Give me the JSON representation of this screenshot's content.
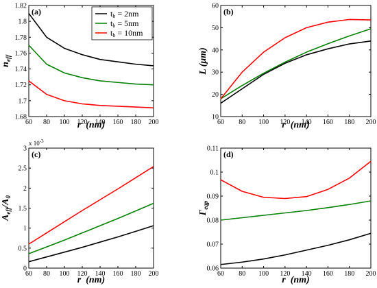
{
  "colors": {
    "black": "#000000",
    "green": "#008000",
    "red": "#ff0000"
  },
  "legend": {
    "panel": "a",
    "entries": [
      {
        "prefix": "t",
        "sub": "b",
        "value": " = 2nm",
        "color": "black"
      },
      {
        "prefix": "t",
        "sub": "b",
        "value": " = 5nm",
        "color": "green"
      },
      {
        "prefix": "t",
        "sub": "b",
        "value": " = 10nm",
        "color": "red"
      }
    ]
  },
  "chart_data": [
    {
      "id": "a",
      "type": "line",
      "panel_label": "(a)",
      "xlabel": "r  (nm)",
      "ylabel_main": "n",
      "ylabel_sub": "eff",
      "xlim": [
        60,
        200
      ],
      "ylim": [
        1.68,
        1.82
      ],
      "xticks": [
        60,
        80,
        100,
        120,
        140,
        160,
        180,
        200
      ],
      "yticks": [
        1.68,
        1.7,
        1.72,
        1.74,
        1.76,
        1.78,
        1.8,
        1.82
      ],
      "ytick_labels": [
        "1.68",
        "1.7",
        "1.72",
        "1.74",
        "1.76",
        "1.78",
        "1.8",
        "1.82"
      ],
      "x": [
        60,
        80,
        100,
        120,
        140,
        160,
        180,
        200
      ],
      "series": [
        {
          "color": "black",
          "values": [
            1.81,
            1.78,
            1.766,
            1.758,
            1.752,
            1.749,
            1.746,
            1.744
          ]
        },
        {
          "color": "green",
          "values": [
            1.77,
            1.746,
            1.735,
            1.729,
            1.725,
            1.723,
            1.721,
            1.72
          ]
        },
        {
          "color": "red",
          "values": [
            1.725,
            1.708,
            1.7,
            1.696,
            1.694,
            1.693,
            1.692,
            1.691
          ]
        }
      ]
    },
    {
      "id": "b",
      "type": "line",
      "panel_label": "(b)",
      "xlabel": "r  (nm)",
      "ylabel_main": "L (μm)",
      "ylabel_sub": "",
      "xlim": [
        60,
        200
      ],
      "ylim": [
        10,
        60
      ],
      "xticks": [
        60,
        80,
        100,
        120,
        140,
        160,
        180,
        200
      ],
      "yticks": [
        10,
        20,
        30,
        40,
        50,
        60
      ],
      "ytick_labels": [
        "10",
        "20",
        "30",
        "40",
        "50",
        "60"
      ],
      "x": [
        60,
        80,
        100,
        120,
        140,
        160,
        180,
        200
      ],
      "series": [
        {
          "color": "black",
          "values": [
            16.0,
            22.5,
            29.0,
            34.0,
            37.8,
            40.5,
            42.7,
            44.0
          ]
        },
        {
          "color": "green",
          "values": [
            18.0,
            24.0,
            29.5,
            34.5,
            39.0,
            42.8,
            46.3,
            49.5
          ]
        },
        {
          "color": "red",
          "values": [
            18.0,
            30.0,
            39.0,
            45.5,
            50.0,
            52.5,
            53.7,
            53.5
          ]
        }
      ]
    },
    {
      "id": "c",
      "type": "line",
      "panel_label": "(c)",
      "xlabel": "r  (nm)",
      "ylabel_main": "A",
      "ylabel_sub": "eff",
      "ylabel_main2": "/A",
      "ylabel_sub2": "0",
      "multiplier": {
        "base": "x 10",
        "exp": "-3"
      },
      "xlim": [
        60,
        200
      ],
      "ylim": [
        0,
        0.003
      ],
      "xticks": [
        60,
        80,
        100,
        120,
        140,
        160,
        180,
        200
      ],
      "yticks": [
        0,
        0.0005,
        0.001,
        0.0015,
        0.002,
        0.0025,
        0.003
      ],
      "ytick_labels": [
        "0",
        "0.5",
        "1",
        "1.5",
        "2",
        "2.5",
        "3"
      ],
      "x": [
        60,
        80,
        100,
        120,
        140,
        160,
        180,
        200
      ],
      "series": [
        {
          "color": "black",
          "values": [
            0.00016,
            0.00028,
            0.0004,
            0.00052,
            0.00065,
            0.00078,
            0.00092,
            0.00106
          ]
        },
        {
          "color": "green",
          "values": [
            0.00036,
            0.00053,
            0.0007,
            0.00088,
            0.00106,
            0.00124,
            0.00143,
            0.00162
          ]
        },
        {
          "color": "red",
          "values": [
            0.0006,
            0.00088,
            0.00116,
            0.00144,
            0.00171,
            0.00198,
            0.00226,
            0.00254
          ]
        }
      ]
    },
    {
      "id": "d",
      "type": "line",
      "panel_label": "(d)",
      "xlabel": "r  (nm)",
      "ylabel_main": "Γ",
      "ylabel_sub": "eqp",
      "xlim": [
        60,
        200
      ],
      "ylim": [
        0.06,
        0.11
      ],
      "xticks": [
        60,
        80,
        100,
        120,
        140,
        160,
        180,
        200
      ],
      "yticks": [
        0.06,
        0.07,
        0.08,
        0.09,
        0.1,
        0.11
      ],
      "ytick_labels": [
        "0.06",
        "0.07",
        "0.08",
        "0.09",
        "0.1",
        "0.11"
      ],
      "x": [
        60,
        80,
        100,
        120,
        140,
        160,
        180,
        200
      ],
      "series": [
        {
          "color": "black",
          "values": [
            0.0615,
            0.0625,
            0.0638,
            0.0655,
            0.0675,
            0.0695,
            0.0718,
            0.0745
          ]
        },
        {
          "color": "green",
          "values": [
            0.08,
            0.081,
            0.082,
            0.083,
            0.084,
            0.0852,
            0.0865,
            0.088
          ]
        },
        {
          "color": "red",
          "values": [
            0.0968,
            0.092,
            0.0895,
            0.089,
            0.0898,
            0.0928,
            0.0975,
            0.1045
          ]
        }
      ]
    }
  ]
}
